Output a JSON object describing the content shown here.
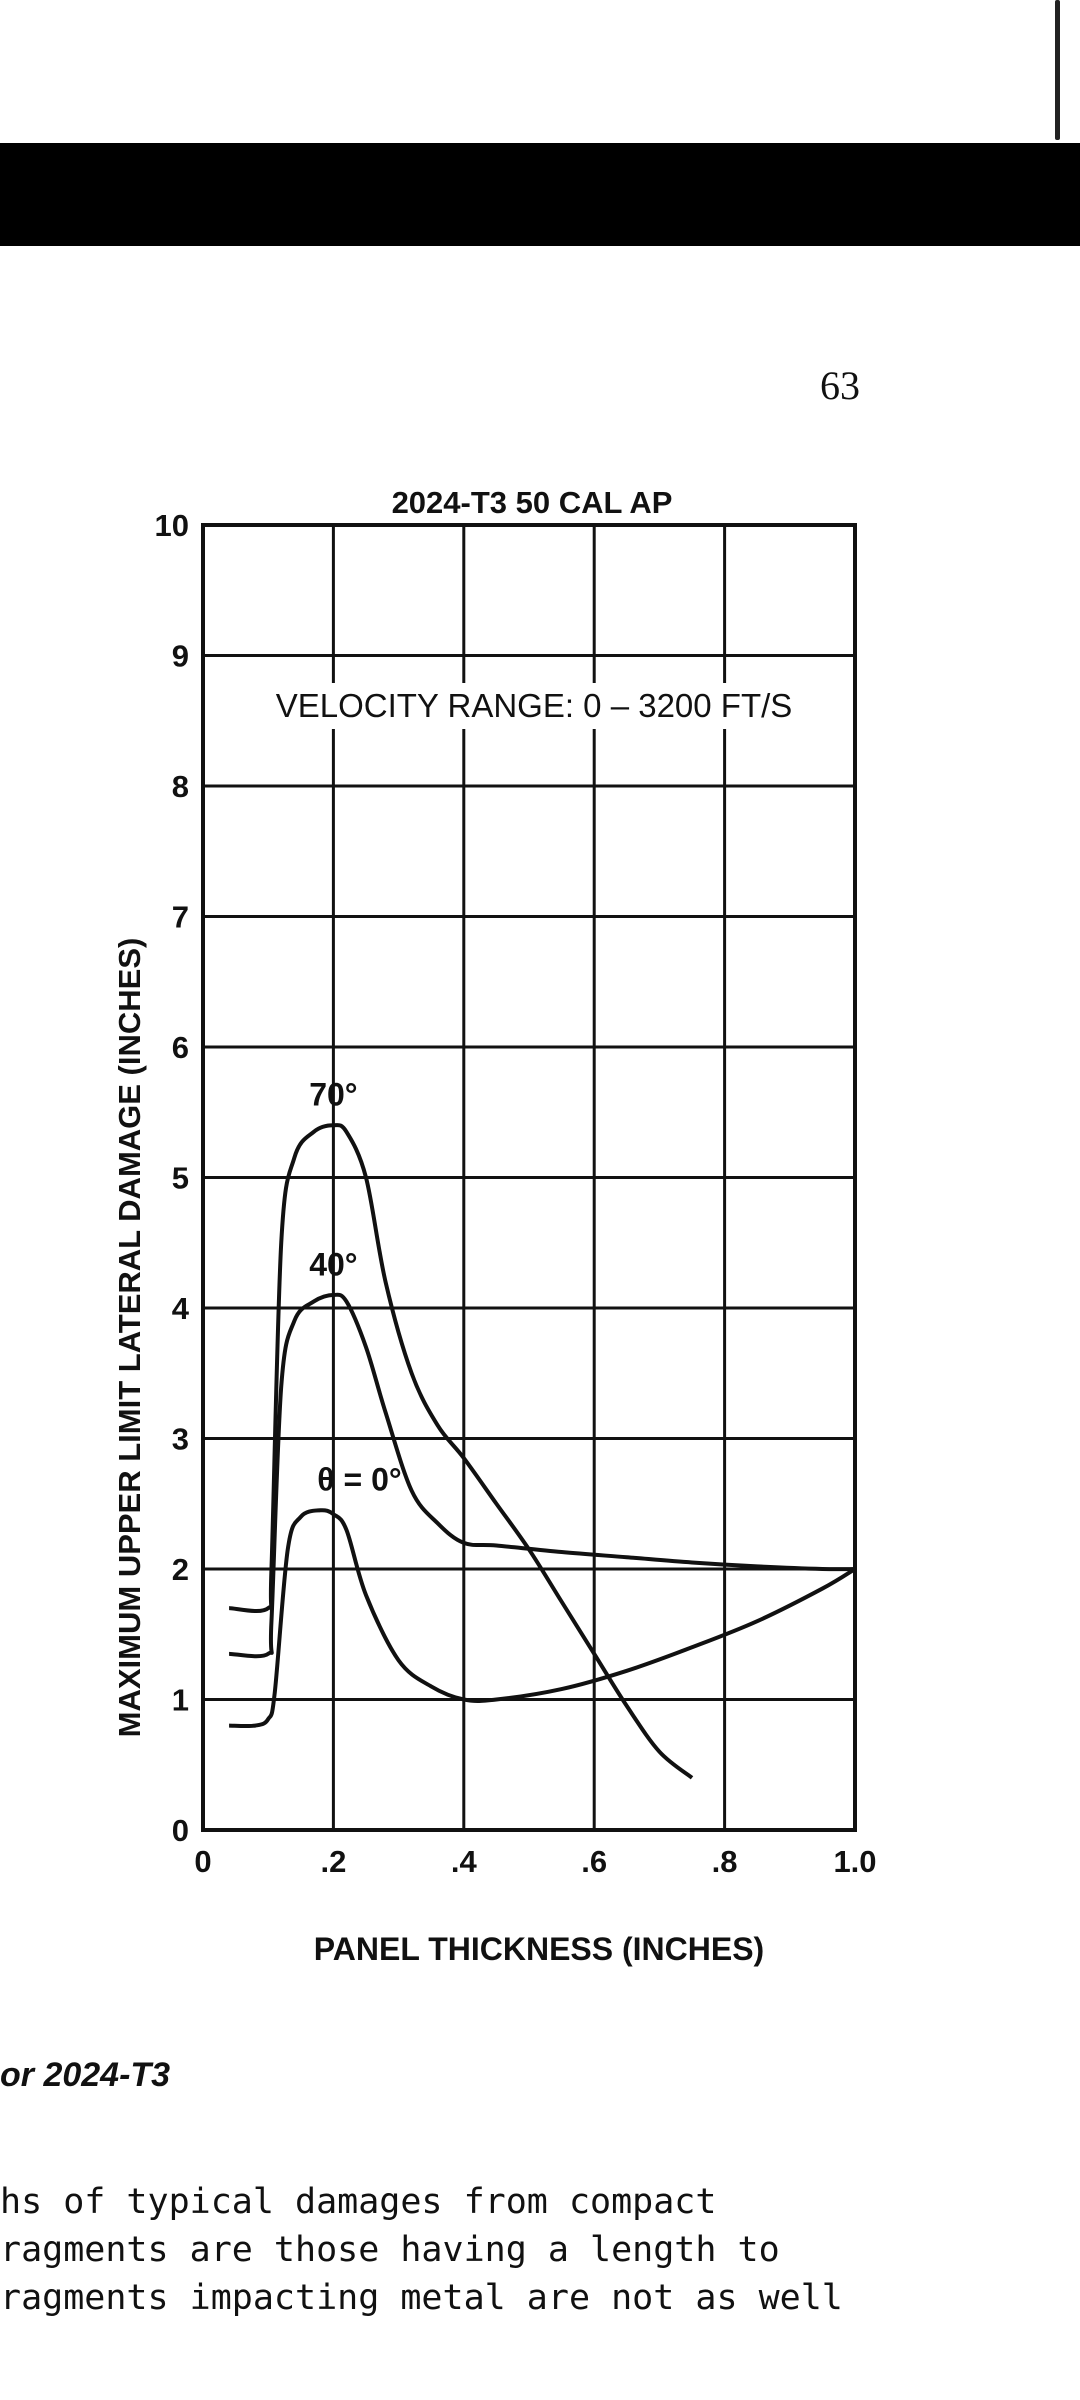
{
  "page": {
    "page_number": "63",
    "figure_caption_fragment": "or 2024-T3",
    "body_text_lines": [
      "hs of typical damages from compact",
      "ragments are those having a length to",
      "ragments impacting metal are not as well"
    ]
  },
  "chart_data": {
    "type": "line",
    "title": "2024-T3 50 CAL AP",
    "annotation": "VELOCITY RANGE: 0 – 3200 FT/S",
    "xlabel": "PANEL THICKNESS  (INCHES)",
    "ylabel": "MAXIMUM UPPER LIMIT LATERAL DAMAGE  (INCHES)",
    "xlim": [
      0,
      1.0
    ],
    "ylim": [
      0,
      10
    ],
    "x_ticks": [
      0,
      0.2,
      0.4,
      0.6,
      0.8,
      1.0
    ],
    "x_tick_labels": [
      "0",
      ".2",
      ".4",
      ".6",
      ".8",
      "1.0"
    ],
    "y_ticks": [
      0,
      1,
      2,
      3,
      4,
      5,
      6,
      7,
      8,
      9,
      10
    ],
    "y_tick_labels": [
      "0",
      "1",
      "2",
      "3",
      "4",
      "5",
      "6",
      "7",
      "8",
      "9",
      "10"
    ],
    "grid": true,
    "series": [
      {
        "name": "θ = 0°",
        "x": [
          0.04,
          0.08,
          0.1,
          0.11,
          0.13,
          0.15,
          0.18,
          0.2,
          0.22,
          0.25,
          0.3,
          0.35,
          0.4,
          0.45,
          0.55,
          0.65,
          0.75,
          0.85,
          0.95,
          1.0
        ],
        "y": [
          0.8,
          0.8,
          0.85,
          1.05,
          2.15,
          2.4,
          2.45,
          2.42,
          2.3,
          1.8,
          1.3,
          1.1,
          1.0,
          1.0,
          1.08,
          1.22,
          1.4,
          1.6,
          1.85,
          2.0
        ]
      },
      {
        "name": "40°",
        "x": [
          0.04,
          0.1,
          0.105,
          0.12,
          0.14,
          0.17,
          0.2,
          0.22,
          0.25,
          0.28,
          0.32,
          0.36,
          0.4,
          0.45,
          0.55,
          0.65,
          0.75,
          0.85,
          0.95,
          1.0
        ],
        "y": [
          1.35,
          1.35,
          1.6,
          3.4,
          3.9,
          4.05,
          4.1,
          4.05,
          3.7,
          3.2,
          2.6,
          2.35,
          2.2,
          2.18,
          2.13,
          2.09,
          2.05,
          2.02,
          2.0,
          2.0
        ]
      },
      {
        "name": "70°",
        "x": [
          0.04,
          0.1,
          0.105,
          0.12,
          0.14,
          0.17,
          0.2,
          0.22,
          0.25,
          0.28,
          0.32,
          0.36,
          0.4,
          0.45,
          0.5,
          0.55,
          0.6,
          0.65,
          0.7,
          0.75
        ],
        "y": [
          1.7,
          1.7,
          2.0,
          4.5,
          5.15,
          5.35,
          5.4,
          5.35,
          5.0,
          4.2,
          3.5,
          3.1,
          2.85,
          2.5,
          2.15,
          1.75,
          1.35,
          0.95,
          0.6,
          0.4
        ]
      }
    ],
    "curve_labels": [
      {
        "text": "70°",
        "x": 0.2,
        "y": 5.55
      },
      {
        "text": "40°",
        "x": 0.2,
        "y": 4.25
      },
      {
        "text": "θ = 0°",
        "x": 0.24,
        "y": 2.6
      }
    ]
  }
}
